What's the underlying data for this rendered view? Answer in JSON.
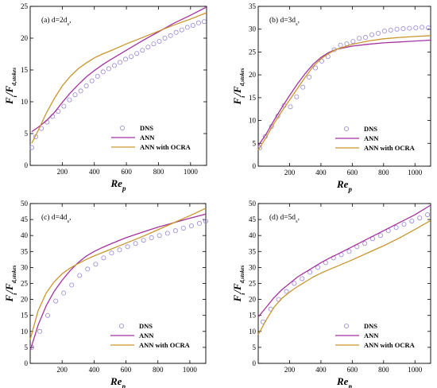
{
  "colors": {
    "dns": "#9a86d6",
    "ann": "#a3329f",
    "ocra": "#c9962e"
  },
  "chart_data": [
    {
      "type": "line",
      "annotation": "(a) d=2d",
      "annotation_sub": "s",
      "xlabel": "Re",
      "xlabel_sub": "p",
      "ylabel": "F",
      "ylabel_sub": "i",
      "ylabel_denom": "F",
      "ylabel_denom_sub": "d,stokes",
      "xlim": [
        0,
        1100
      ],
      "ylim": [
        0,
        25
      ],
      "xticks": [
        200,
        400,
        600,
        800,
        1000
      ],
      "yticks": [
        0,
        5,
        10,
        15,
        20,
        25
      ],
      "legend_position": "bottom-right",
      "series": [
        {
          "name": "DNS",
          "style": "markers",
          "x": [
            10,
            35,
            70,
            105,
            140,
            175,
            210,
            245,
            280,
            315,
            350,
            385,
            420,
            455,
            490,
            525,
            560,
            595,
            630,
            665,
            700,
            735,
            770,
            805,
            840,
            875,
            910,
            945,
            980,
            1015,
            1050,
            1085
          ],
          "y": [
            2.8,
            4.5,
            5.8,
            6.8,
            7.7,
            8.5,
            9.3,
            10.3,
            11.1,
            11.7,
            12.5,
            13.3,
            14.0,
            14.7,
            15.2,
            15.7,
            16.2,
            16.7,
            17.1,
            17.6,
            18.1,
            18.6,
            19.1,
            19.5,
            20.0,
            20.4,
            20.9,
            21.3,
            21.7,
            22.0,
            22.4,
            22.6
          ]
        },
        {
          "name": "ANN",
          "style": "line",
          "x": [
            10,
            50,
            100,
            150,
            200,
            250,
            300,
            350,
            400,
            450,
            500,
            600,
            700,
            800,
            900,
            1000,
            1100
          ],
          "y": [
            5.3,
            6.0,
            7.0,
            8.3,
            9.9,
            11.4,
            12.7,
            13.9,
            14.9,
            15.8,
            16.6,
            18.1,
            19.6,
            21.0,
            22.4,
            23.6,
            24.9
          ]
        },
        {
          "name": "ANN with OCRA",
          "style": "line",
          "x": [
            10,
            50,
            100,
            150,
            200,
            250,
            300,
            350,
            400,
            450,
            500,
            600,
            700,
            800,
            900,
            1000,
            1100
          ],
          "y": [
            3.5,
            5.5,
            8.2,
            10.5,
            12.5,
            14.0,
            15.2,
            16.1,
            16.9,
            17.5,
            18.0,
            19.1,
            20.1,
            21.1,
            22.1,
            23.0,
            24.0
          ]
        }
      ]
    },
    {
      "type": "line",
      "annotation": "(b) d=3d",
      "annotation_sub": "s",
      "xlabel": "Re",
      "xlabel_sub": "p",
      "ylabel": "F",
      "ylabel_sub": "i",
      "ylabel_denom": "F",
      "ylabel_denom_sub": "d,stokes",
      "xlim": [
        0,
        1100
      ],
      "ylim": [
        0,
        35
      ],
      "xticks": [
        200,
        400,
        600,
        800,
        1000
      ],
      "yticks": [
        0,
        5,
        10,
        15,
        20,
        25,
        30,
        35
      ],
      "legend_position": "bottom-right",
      "series": [
        {
          "name": "DNS",
          "style": "markers",
          "x": [
            10,
            45,
            85,
            125,
            165,
            205,
            245,
            285,
            325,
            365,
            405,
            445,
            485,
            525,
            565,
            605,
            645,
            685,
            725,
            765,
            805,
            845,
            885,
            925,
            965,
            1005,
            1045,
            1085
          ],
          "y": [
            4.0,
            6.5,
            8.7,
            11.0,
            13.3,
            13.0,
            15.2,
            17.3,
            19.5,
            21.5,
            23.0,
            24.0,
            25.5,
            26.5,
            26.8,
            27.3,
            28.0,
            28.2,
            28.8,
            29.1,
            29.6,
            29.8,
            30.0,
            30.1,
            30.2,
            30.3,
            30.4,
            30.3
          ]
        },
        {
          "name": "ANN",
          "style": "line",
          "x": [
            0,
            50,
            100,
            150,
            200,
            250,
            300,
            350,
            400,
            450,
            500,
            600,
            700,
            800,
            900,
            1000,
            1100
          ],
          "y": [
            4.5,
            7.0,
            10.0,
            12.8,
            15.5,
            18.0,
            20.3,
            22.3,
            23.8,
            24.9,
            25.6,
            26.3,
            26.7,
            27.0,
            27.2,
            27.4,
            27.6
          ]
        },
        {
          "name": "ANN with OCRA",
          "style": "line",
          "x": [
            0,
            50,
            100,
            150,
            200,
            250,
            300,
            350,
            400,
            450,
            500,
            600,
            700,
            800,
            900,
            1000,
            1100
          ],
          "y": [
            3.5,
            6.3,
            9.3,
            12.0,
            14.5,
            17.0,
            19.5,
            21.8,
            23.5,
            24.7,
            25.6,
            26.7,
            27.4,
            27.9,
            28.2,
            28.4,
            28.6
          ]
        }
      ]
    },
    {
      "type": "line",
      "annotation": "(c) d=4d",
      "annotation_sub": "s",
      "xlabel": "Re",
      "xlabel_sub": "p",
      "ylabel": "F",
      "ylabel_sub": "i",
      "ylabel_denom": "F",
      "ylabel_denom_sub": "d,stokes",
      "xlim": [
        0,
        1100
      ],
      "ylim": [
        0,
        50
      ],
      "xticks": [
        200,
        400,
        600,
        800,
        1000
      ],
      "yticks": [
        0,
        5,
        10,
        15,
        20,
        25,
        30,
        35,
        40,
        45,
        50
      ],
      "legend_position": "bottom-right",
      "series": [
        {
          "name": "DNS",
          "style": "markers",
          "x": [
            10,
            60,
            110,
            160,
            210,
            260,
            310,
            360,
            410,
            460,
            510,
            560,
            610,
            660,
            710,
            760,
            810,
            860,
            910,
            960,
            1010,
            1060,
            1100
          ],
          "y": [
            5.0,
            10.0,
            15.0,
            19.5,
            22.0,
            24.5,
            27.5,
            29.5,
            31.0,
            33.0,
            34.5,
            35.5,
            36.5,
            37.5,
            38.5,
            39.3,
            40.0,
            40.7,
            41.5,
            42.3,
            43.0,
            43.8,
            44.5
          ]
        },
        {
          "name": "ANN",
          "style": "line",
          "x": [
            0,
            50,
            100,
            150,
            200,
            250,
            300,
            350,
            400,
            450,
            500,
            600,
            700,
            800,
            900,
            1000,
            1100
          ],
          "y": [
            4.0,
            12.0,
            18.0,
            22.5,
            26.0,
            29.0,
            31.5,
            33.5,
            35.0,
            36.2,
            37.3,
            39.3,
            41.0,
            42.6,
            44.0,
            45.4,
            46.7
          ]
        },
        {
          "name": "ANN with OCRA",
          "style": "line",
          "x": [
            0,
            50,
            100,
            150,
            200,
            250,
            300,
            350,
            400,
            450,
            500,
            600,
            700,
            800,
            900,
            1000,
            1100
          ],
          "y": [
            7.5,
            16.5,
            22.0,
            25.5,
            28.0,
            29.8,
            31.2,
            32.5,
            33.6,
            34.6,
            35.6,
            37.6,
            39.6,
            41.8,
            44.0,
            46.2,
            48.5
          ]
        }
      ]
    },
    {
      "type": "line",
      "annotation": "(d) d=5d",
      "annotation_sub": "s",
      "xlabel": "Re",
      "xlabel_sub": "p",
      "ylabel": "F",
      "ylabel_sub": "i",
      "ylabel_denom": "F",
      "ylabel_denom_sub": "d,stokes",
      "xlim": [
        0,
        1100
      ],
      "ylim": [
        0,
        50
      ],
      "xticks": [
        200,
        400,
        600,
        800,
        1000
      ],
      "yticks": [
        0,
        5,
        10,
        15,
        20,
        25,
        30,
        35,
        40,
        45,
        50
      ],
      "legend_position": "bottom-right",
      "series": [
        {
          "name": "DNS",
          "style": "markers",
          "x": [
            30,
            80,
            130,
            180,
            230,
            280,
            330,
            380,
            430,
            480,
            530,
            580,
            630,
            680,
            730,
            780,
            830,
            880,
            930,
            980,
            1030,
            1080
          ],
          "y": [
            13.0,
            17.0,
            20.0,
            22.5,
            25.0,
            26.5,
            28.5,
            30.0,
            31.5,
            33.0,
            34.0,
            35.0,
            36.5,
            37.5,
            39.0,
            40.0,
            41.5,
            42.5,
            43.5,
            44.5,
            45.5,
            46.5
          ]
        },
        {
          "name": "ANN",
          "style": "line",
          "x": [
            0,
            50,
            100,
            150,
            200,
            250,
            300,
            350,
            400,
            450,
            500,
            600,
            700,
            800,
            900,
            1000,
            1100
          ],
          "y": [
            14.5,
            17.5,
            20.5,
            23.0,
            25.0,
            27.0,
            28.5,
            30.0,
            31.5,
            32.8,
            34.0,
            36.5,
            39.0,
            41.5,
            44.0,
            46.5,
            49.5
          ]
        },
        {
          "name": "ANN with OCRA",
          "style": "line",
          "x": [
            0,
            50,
            100,
            150,
            200,
            250,
            300,
            350,
            400,
            450,
            500,
            600,
            700,
            800,
            900,
            1000,
            1100
          ],
          "y": [
            9.0,
            13.5,
            17.5,
            20.3,
            22.3,
            24.0,
            25.5,
            27.0,
            28.2,
            29.3,
            30.3,
            32.4,
            34.6,
            36.8,
            39.2,
            41.9,
            44.7
          ]
        }
      ]
    }
  ]
}
